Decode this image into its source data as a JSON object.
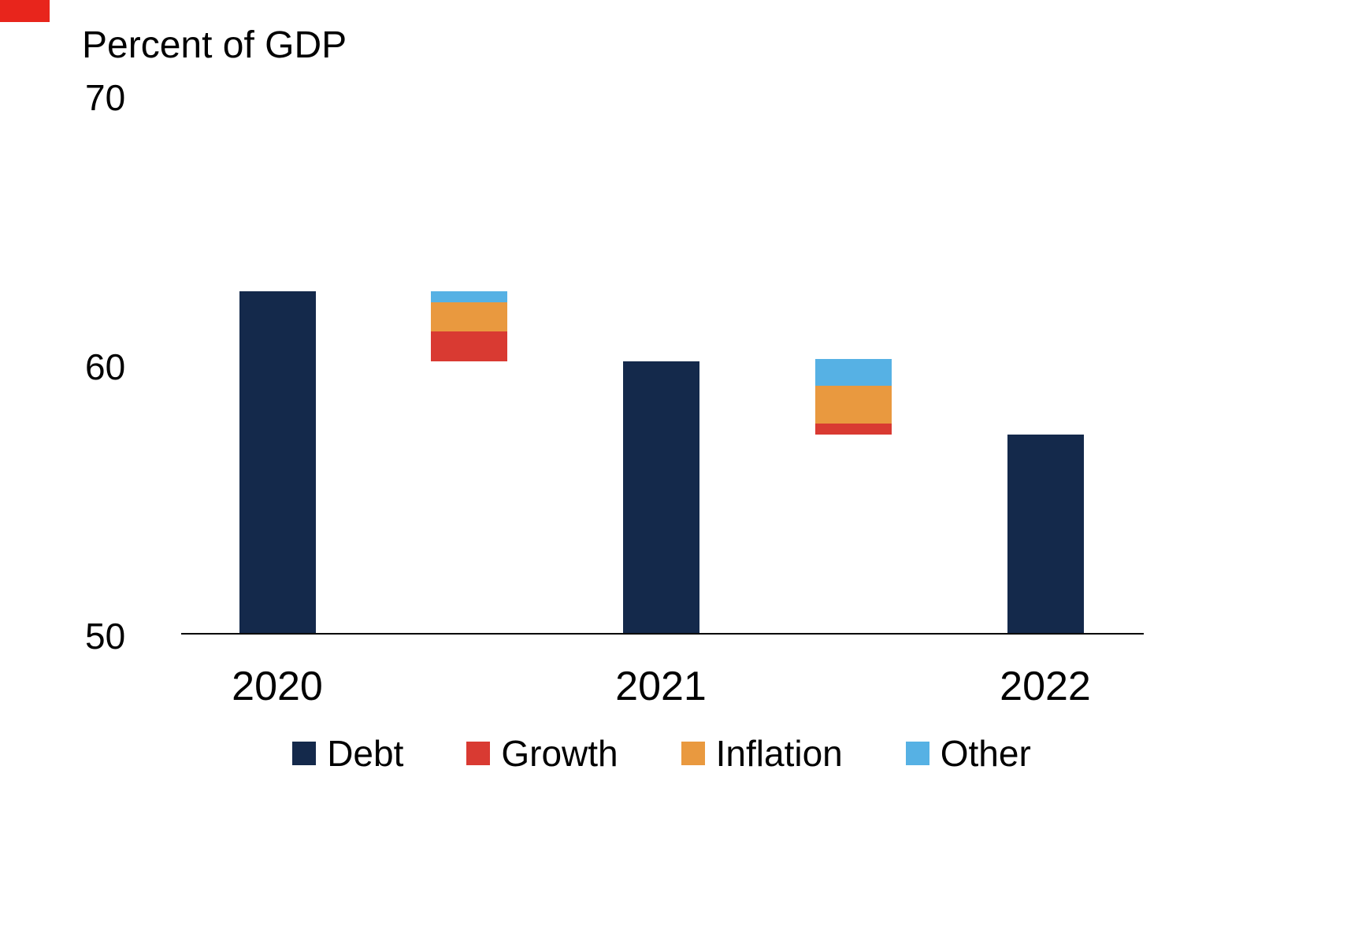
{
  "corner_marker": {
    "color": "#e8251c"
  },
  "chart_data": {
    "type": "bar",
    "subtype": "waterfall_decomposition",
    "title": "Percent of GDP",
    "categories": [
      "2020",
      "2021",
      "2022"
    ],
    "series": [
      {
        "name": "Debt",
        "values": [
          62.7,
          60.1,
          57.4
        ]
      }
    ],
    "decomposition_stacks": [
      {
        "between": [
          "2020",
          "2021"
        ],
        "base": 60.1,
        "segments": [
          {
            "name": "Growth",
            "value": 1.1
          },
          {
            "name": "Inflation",
            "value": 1.1
          },
          {
            "name": "Other",
            "value": 0.4
          }
        ]
      },
      {
        "between": [
          "2021",
          "2022"
        ],
        "base": 57.4,
        "segments": [
          {
            "name": "Growth",
            "value": 0.4
          },
          {
            "name": "Inflation",
            "value": 1.4
          },
          {
            "name": "Other",
            "value": 1.0
          }
        ]
      }
    ],
    "ylim": [
      50,
      70
    ],
    "ytick_values": [
      70,
      60,
      50
    ],
    "ytick_labels": [
      "70",
      "60",
      "50"
    ],
    "grid": false,
    "legend_position": "bottom",
    "legend": [
      {
        "label": "Debt",
        "color": "#14294b"
      },
      {
        "label": "Growth",
        "color": "#d93a32"
      },
      {
        "label": "Inflation",
        "color": "#e9993f"
      },
      {
        "label": "Other",
        "color": "#56b1e4"
      }
    ]
  }
}
